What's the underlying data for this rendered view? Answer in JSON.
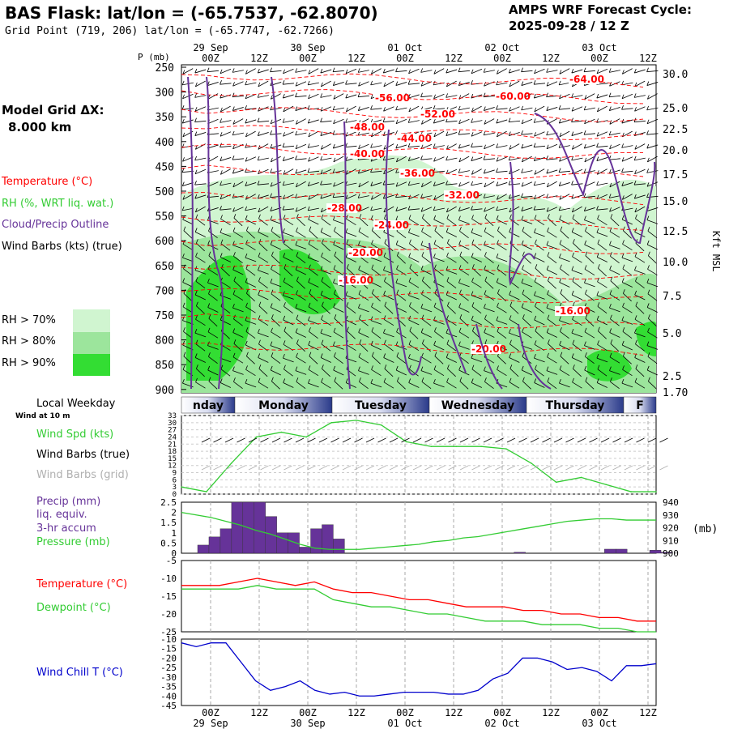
{
  "header": {
    "title": "BAS Flask:  lat/lon = (-65.7537, -62.8070)",
    "subtitle": "Grid Point (719, 206) lat/lon = (-65.7747, -62.7266)",
    "cycle_line1": "AMPS WRF Forecast Cycle:",
    "cycle_line2": "2025-09-28 / 12  Z"
  },
  "sidebar": {
    "model_grid_label": "Model Grid ΔX:",
    "model_grid_value": "8.000 km",
    "legend_temperature": "Temperature (°C)",
    "legend_rh": "RH (%, WRT liq. wat.)",
    "legend_cloud": "Cloud/Precip Outline",
    "legend_wind": "Wind Barbs (kts) (true)",
    "rh_bins": [
      "RH > 70%",
      "RH > 80%",
      "RH > 90%"
    ],
    "local_weekday": "Local Weekday",
    "wind_at": "Wind at 10 m",
    "wind_spd": "Wind Spd (kts)",
    "wind_barbs_true": "Wind Barbs (true)",
    "wind_barbs_grid": "Wind Barbs (grid)",
    "precip_l1": "Precip (mm)",
    "precip_l2": "liq. equiv.",
    "precip_l3": "3-hr accum",
    "pressure": "Pressure (mb)",
    "temperature": "Temperature (°C)",
    "dewpoint": "Dewpoint (°C)",
    "wind_chill": "Wind Chill T (°C)"
  },
  "colors": {
    "temp": "#ff0000",
    "rh": "#33cc33",
    "cloud": "#663399",
    "wind": "#000000",
    "wind_grid": "#b0b0b0",
    "precip": "#663399",
    "chill": "#0000cc",
    "rh70": "#d0f5d0",
    "rh80": "#9ce59c",
    "rh90": "#33dd33"
  },
  "chart_data": [
    {
      "type": "heatmap",
      "title": "Vertical cross-section",
      "ylabel": "P (mb)",
      "yticks": [
        "250",
        "300",
        "350",
        "400",
        "450",
        "500",
        "550",
        "600",
        "650",
        "700",
        "750",
        "800",
        "850",
        "900"
      ],
      "right_ticks": [
        "30.0",
        "25.0",
        "22.5",
        "20.0",
        "17.5",
        "15.0",
        "12.5",
        "10.0",
        "7.5",
        "5.0",
        "2.5",
        "1.70"
      ],
      "right_label": "Kft MSL",
      "x_top_hours": [
        "00Z",
        "12Z",
        "00Z",
        "12Z",
        "00Z",
        "12Z",
        "00Z",
        "12Z",
        "00Z",
        "12Z"
      ],
      "x_top_dates": [
        "29 Sep",
        "30 Sep",
        "01 Oct",
        "02 Oct",
        "03 Oct"
      ],
      "temperature_labels": [
        "-64.00",
        "-60.00",
        "-56.00",
        "-52.00",
        "-48.00",
        "-44.00",
        "-40.00",
        "-36.00",
        "-32.00",
        "-28.00",
        "-24.00",
        "-20.00",
        "-16.00",
        "-16.00",
        "-20.00"
      ]
    },
    {
      "type": "table",
      "title": "Local Weekday",
      "days": [
        "nday",
        "Monday",
        "Tuesday",
        "Wednesday",
        "Thursday",
        "F"
      ]
    },
    {
      "type": "line",
      "title": "Wind Spd (kts)",
      "ylim": [
        0,
        33
      ],
      "yticks": [
        "33",
        "30",
        "27",
        "24",
        "21",
        "18",
        "15",
        "12",
        "9",
        "6",
        "3",
        "0"
      ],
      "series": [
        {
          "name": "Wind Spd",
          "values": [
            3,
            1,
            13,
            24,
            26,
            24,
            30,
            31,
            29,
            22,
            20,
            20,
            20,
            19,
            13,
            5,
            7,
            4,
            1,
            1
          ]
        }
      ]
    },
    {
      "type": "bar",
      "title": "Precip (mm) / Pressure (mb)",
      "ylim": [
        0,
        2.5
      ],
      "yticks": [
        "2.5",
        "2",
        "1.5",
        "1",
        "0.5",
        "0"
      ],
      "right_ticks": [
        "940",
        "930",
        "920",
        "910",
        "900"
      ],
      "right_label": "(mb)",
      "precip": [
        0.4,
        0.8,
        1.2,
        2.5,
        2.5,
        2.5,
        1.8,
        1.0,
        1.0,
        0.3,
        1.2,
        1.4,
        0.7,
        0,
        0,
        0,
        0,
        0,
        0,
        0,
        0,
        0,
        0,
        0,
        0,
        0,
        0,
        0,
        0.05,
        0,
        0,
        0,
        0,
        0,
        0,
        0,
        0.2,
        0.2,
        0,
        0,
        0.15,
        0.05
      ],
      "pressure": [
        932,
        930,
        928,
        925,
        922,
        918,
        915,
        911,
        907,
        904,
        903,
        903,
        903,
        904,
        905,
        906,
        907,
        909,
        910,
        912,
        913,
        915,
        917,
        919,
        921,
        923,
        925,
        926,
        927,
        927,
        926,
        926,
        926
      ]
    },
    {
      "type": "line",
      "title": "Temperature / Dewpoint (°C)",
      "ylim": [
        -25,
        -5
      ],
      "yticks": [
        "-5",
        "-10",
        "-15",
        "-20",
        "-25"
      ],
      "series": [
        {
          "name": "Temperature",
          "values": [
            -12,
            -12,
            -12,
            -11,
            -10,
            -11,
            -12,
            -11,
            -13,
            -14,
            -14,
            -15,
            -16,
            -16,
            -17,
            -18,
            -18,
            -18,
            -19,
            -19,
            -20,
            -20,
            -21,
            -21,
            -22,
            -22
          ]
        },
        {
          "name": "Dewpoint",
          "values": [
            -13,
            -13,
            -13,
            -13,
            -12,
            -13,
            -13,
            -13,
            -16,
            -17,
            -18,
            -18,
            -19,
            -20,
            -20,
            -21,
            -22,
            -22,
            -22,
            -23,
            -23,
            -23,
            -24,
            -24,
            -25,
            -25
          ]
        }
      ]
    },
    {
      "type": "line",
      "title": "Wind Chill T (°C)",
      "ylim": [
        -45,
        -10
      ],
      "yticks": [
        "-10",
        "-15",
        "-20",
        "-25",
        "-30",
        "-35",
        "-40",
        "-45"
      ],
      "x_bottom_hours": [
        "00Z",
        "12Z",
        "00Z",
        "12Z",
        "00Z",
        "12Z",
        "00Z",
        "12Z",
        "00Z",
        "12Z"
      ],
      "x_bottom_dates": [
        "29 Sep",
        "30 Sep",
        "01 Oct",
        "02 Oct",
        "03 Oct"
      ],
      "series": [
        {
          "name": "Wind Chill",
          "values": [
            -12,
            -14,
            -12,
            -12,
            -22,
            -32,
            -37,
            -35,
            -32,
            -37,
            -39,
            -38,
            -40,
            -40,
            -39,
            -38,
            -38,
            -38,
            -39,
            -39,
            -37,
            -31,
            -28,
            -20,
            -20,
            -22,
            -26,
            -25,
            -27,
            -32,
            -24,
            -24,
            -23
          ]
        }
      ]
    }
  ]
}
